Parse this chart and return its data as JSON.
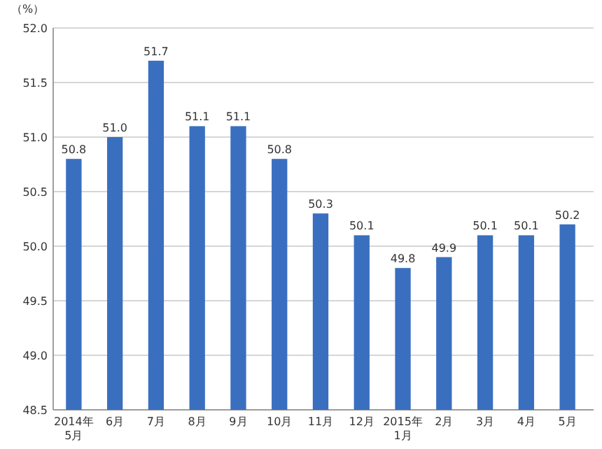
{
  "chart_data": {
    "type": "bar",
    "ylabel": "（%）",
    "categories": [
      "2014年\n5月",
      "6月",
      "7月",
      "8月",
      "9月",
      "10月",
      "11月",
      "12月",
      "2015年\n1月",
      "2月",
      "3月",
      "4月",
      "5月"
    ],
    "values": [
      50.8,
      51.0,
      51.7,
      51.1,
      51.1,
      50.8,
      50.3,
      50.1,
      49.8,
      49.9,
      50.1,
      50.1,
      50.2
    ],
    "value_labels": [
      "50.8",
      "51.0",
      "51.7",
      "51.1",
      "51.1",
      "50.8",
      "50.3",
      "50.1",
      "49.8",
      "49.9",
      "50.1",
      "50.1",
      "50.2"
    ],
    "color": "#3a6fc0",
    "ylim": [
      48.5,
      52.0
    ],
    "yticks": [
      {
        "value": 48.5,
        "label": "48.5"
      },
      {
        "value": 49,
        "label": "49.0"
      },
      {
        "value": 49.5,
        "label": "49.5"
      },
      {
        "value": 50,
        "label": "50.0"
      },
      {
        "value": 50.5,
        "label": "50.5"
      },
      {
        "value": 51,
        "label": "51.0"
      },
      {
        "value": 51.5,
        "label": "51.5"
      },
      {
        "value": 52,
        "label": "52.0"
      }
    ],
    "grid": "y"
  }
}
